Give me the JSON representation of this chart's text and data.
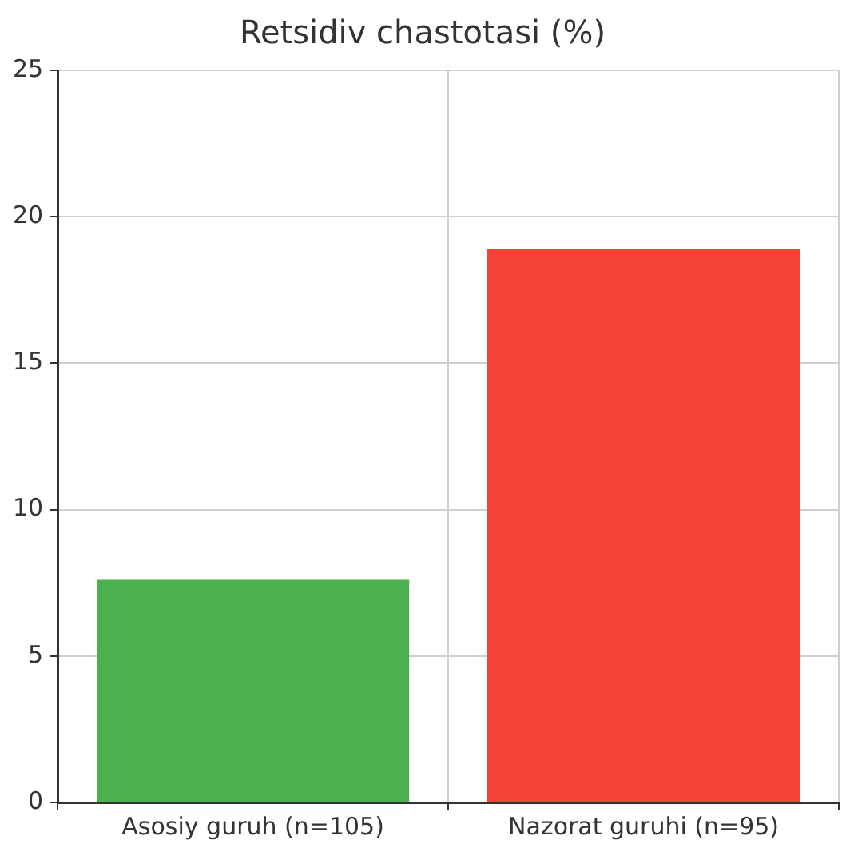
{
  "chart_data": {
    "type": "bar",
    "title": "Retsidiv chastotasi (%)",
    "categories": [
      "Asosiy guruh (n=105)",
      "Nazorat guruhi (n=95)"
    ],
    "values": [
      7.6,
      18.9
    ],
    "colors": [
      "#4caf50",
      "#f44336"
    ],
    "ylim": [
      0,
      25
    ],
    "yticks": [
      0,
      5,
      10,
      15,
      20,
      25
    ],
    "grid": true
  }
}
